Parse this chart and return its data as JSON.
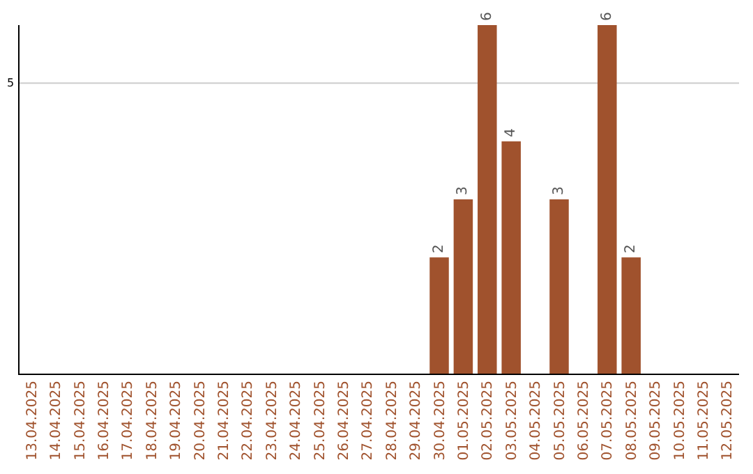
{
  "chart_data": {
    "type": "bar",
    "categories": [
      "13.04.2025",
      "14.04.2025",
      "15.04.2025",
      "16.04.2025",
      "17.04.2025",
      "18.04.2025",
      "19.04.2025",
      "20.04.2025",
      "21.04.2025",
      "22.04.2025",
      "23.04.2025",
      "24.04.2025",
      "25.04.2025",
      "26.04.2025",
      "27.04.2025",
      "28.04.2025",
      "29.04.2025",
      "30.04.2025",
      "01.05.2025",
      "02.05.2025",
      "03.05.2025",
      "04.05.2025",
      "05.05.2025",
      "06.05.2025",
      "07.05.2025",
      "08.05.2025",
      "09.05.2025",
      "10.05.2025",
      "11.05.2025",
      "12.05.2025"
    ],
    "values": [
      null,
      null,
      null,
      null,
      null,
      null,
      null,
      null,
      null,
      null,
      null,
      null,
      null,
      null,
      null,
      null,
      null,
      2,
      3,
      6,
      4,
      null,
      3,
      null,
      6,
      2,
      null,
      null,
      null,
      null
    ],
    "data_labels": true,
    "ylim": [
      0,
      6
    ],
    "ref_lines": [
      {
        "axis": "y",
        "value": 5,
        "label": "5",
        "color": "#cccccc"
      }
    ],
    "color": "#a0522d",
    "legend": false
  }
}
